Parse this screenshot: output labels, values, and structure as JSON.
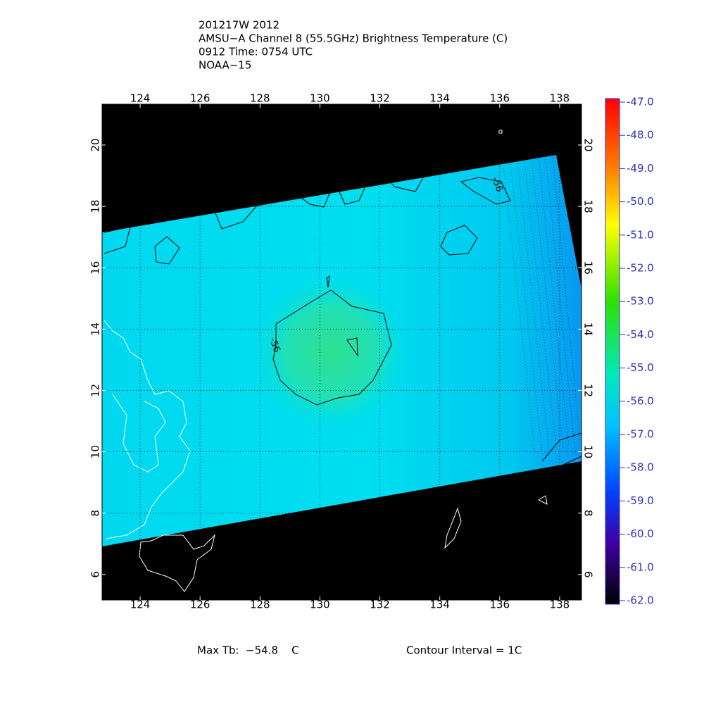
{
  "header": {
    "lines": [
      "201217W 2012",
      "AMSU−A Channel 8 (55.5GHz) Brightness Temperature (C)",
      "0912 Time: 0754 UTC",
      "NOAA−15"
    ]
  },
  "map": {
    "xlim": [
      122.73,
      138.73
    ],
    "ylim": [
      5.17,
      21.33
    ],
    "xticks": [
      124,
      126,
      128,
      130,
      132,
      134,
      136,
      138
    ],
    "yticks": [
      6,
      8,
      10,
      12,
      14,
      16,
      18,
      20
    ],
    "contour_labels": [
      "-56",
      "-56"
    ]
  },
  "colorbar": {
    "lim": [
      -62,
      -47
    ],
    "ticks": [
      {
        "value": -47,
        "label": "-47.0"
      },
      {
        "value": -48,
        "label": "-48.0"
      },
      {
        "value": -49,
        "label": "-49.0"
      },
      {
        "value": -50,
        "label": "-50.0"
      },
      {
        "value": -51,
        "label": "-51.0"
      },
      {
        "value": -52,
        "label": "-52.0"
      },
      {
        "value": -53,
        "label": "-53.0"
      },
      {
        "value": -54,
        "label": "-54.0"
      },
      {
        "value": -55,
        "label": "-55.0"
      },
      {
        "value": -56,
        "label": "-56.0"
      },
      {
        "value": -57,
        "label": "-57.0"
      },
      {
        "value": -58,
        "label": "-58.0"
      },
      {
        "value": -59,
        "label": "-59.0"
      },
      {
        "value": -60,
        "label": "-60.0"
      },
      {
        "value": -61,
        "label": "-61.0"
      },
      {
        "value": -62,
        "label": "-62.0"
      }
    ]
  },
  "footer": {
    "max_tb": "Max Tb:  −54.8    C",
    "contour_interval": "Contour Interval = 1C"
  }
}
